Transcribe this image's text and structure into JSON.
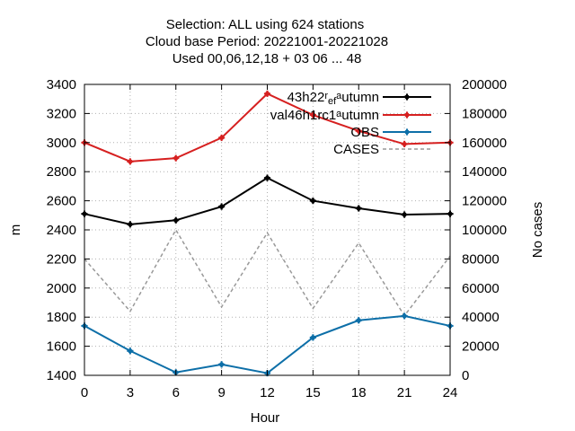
{
  "chart_data": {
    "type": "line",
    "title_lines": [
      "Selection: ALL using   624 stations",
      "Cloud base   Period: 20221001-20221028",
      "Used  00,06,12,18  + 03 06 ... 48"
    ],
    "xlabel": "Hour",
    "ylabel": "m",
    "y2label": "No cases",
    "x": [
      0,
      3,
      6,
      9,
      12,
      15,
      18,
      21,
      24
    ],
    "xlim": [
      0,
      24
    ],
    "xticks": [
      0,
      3,
      6,
      9,
      12,
      15,
      18,
      21,
      24
    ],
    "ylim": [
      1400,
      3400
    ],
    "yticks": [
      1400,
      1600,
      1800,
      2000,
      2200,
      2400,
      2600,
      2800,
      3000,
      3200,
      3400
    ],
    "y2lim": [
      0,
      200000
    ],
    "y2ticks": [
      0,
      20000,
      40000,
      60000,
      80000,
      100000,
      120000,
      140000,
      160000,
      180000,
      200000
    ],
    "grid": true,
    "legend_position": "top-right",
    "series": [
      {
        "name_parts": [
          "43h22",
          "r",
          "ef",
          "a",
          "utumn"
        ],
        "color": "#000000",
        "axis": "y",
        "values": [
          2510,
          2438,
          2466,
          2560,
          2757,
          2600,
          2548,
          2505,
          2510
        ]
      },
      {
        "name_parts": [
          "val46h1rc1",
          "a",
          "utumn"
        ],
        "color": "#d62020",
        "axis": "y",
        "values": [
          3000,
          2870,
          2893,
          3033,
          3336,
          3190,
          3080,
          2990,
          3000
        ]
      },
      {
        "name": "OBS",
        "color": "#0d6fa8",
        "axis": "y",
        "values": [
          1740,
          1568,
          1420,
          1475,
          1415,
          1660,
          1778,
          1808,
          1740
        ]
      },
      {
        "name": "CASES",
        "color": "#999999",
        "axis": "y2",
        "dashed": true,
        "values": [
          80000,
          44000,
          100000,
          47000,
          98000,
          46000,
          91000,
          41000,
          82000
        ]
      }
    ]
  }
}
